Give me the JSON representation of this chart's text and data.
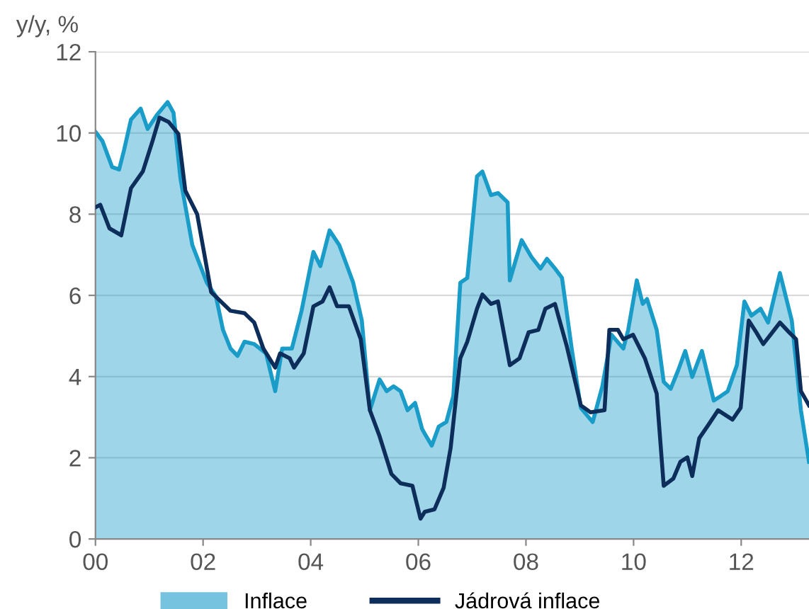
{
  "chart_data": {
    "type": "line",
    "ylabel": "y/y, %",
    "xlim": [
      2000,
      2013.26
    ],
    "ylim": [
      0,
      12
    ],
    "xticks": [
      {
        "value": 2000,
        "label": "00"
      },
      {
        "value": 2002,
        "label": "02"
      },
      {
        "value": 2004,
        "label": "04"
      },
      {
        "value": 2006,
        "label": "06"
      },
      {
        "value": 2008,
        "label": "08"
      },
      {
        "value": 2010,
        "label": "10"
      },
      {
        "value": 2012,
        "label": "12"
      }
    ],
    "yticks": [
      0,
      2,
      4,
      6,
      8,
      10,
      12
    ],
    "grid": "y",
    "legend": "bottom",
    "series": [
      {
        "name": "Inflace",
        "type": "area",
        "color": "#1a9cc9",
        "x": [
          2000.0,
          2000.13,
          2000.31,
          2000.44,
          2000.53,
          2000.66,
          2000.84,
          2000.97,
          2001.14,
          2001.34,
          2001.45,
          2001.58,
          2001.8,
          2002.07,
          2002.24,
          2002.37,
          2002.51,
          2002.64,
          2002.77,
          2002.95,
          2003.17,
          2003.34,
          2003.47,
          2003.65,
          2003.83,
          2004.05,
          2004.18,
          2004.35,
          2004.53,
          2004.66,
          2004.79,
          2004.95,
          2005.1,
          2005.28,
          2005.41,
          2005.54,
          2005.67,
          2005.8,
          2005.94,
          2006.07,
          2006.12,
          2006.25,
          2006.38,
          2006.52,
          2006.65,
          2006.78,
          2006.91,
          2007.09,
          2007.19,
          2007.35,
          2007.48,
          2007.66,
          2007.7,
          2007.92,
          2008.1,
          2008.27,
          2008.39,
          2008.54,
          2008.67,
          2008.85,
          2009.02,
          2009.24,
          2009.42,
          2009.59,
          2009.81,
          2009.9,
          2010.06,
          2010.17,
          2010.25,
          2010.43,
          2010.56,
          2010.69,
          2010.83,
          2010.96,
          2011.09,
          2011.27,
          2011.49,
          2011.62,
          2011.75,
          2011.92,
          2012.06,
          2012.19,
          2012.36,
          2012.5,
          2012.72,
          2012.94,
          2013.11,
          2013.26
        ],
        "values": [
          10.03,
          9.8,
          9.16,
          9.1,
          9.57,
          10.33,
          10.6,
          10.1,
          10.44,
          10.76,
          10.5,
          8.87,
          7.24,
          6.31,
          5.97,
          5.15,
          4.69,
          4.51,
          4.86,
          4.8,
          4.57,
          3.64,
          4.69,
          4.69,
          5.62,
          7.07,
          6.72,
          7.6,
          7.24,
          6.78,
          6.31,
          5.38,
          3.17,
          3.93,
          3.64,
          3.76,
          3.64,
          3.17,
          3.35,
          2.71,
          2.59,
          2.3,
          2.77,
          2.88,
          3.52,
          6.31,
          6.43,
          8.93,
          9.05,
          8.47,
          8.52,
          8.29,
          6.37,
          7.36,
          6.95,
          6.66,
          6.9,
          6.66,
          6.43,
          4.69,
          3.23,
          2.88,
          3.76,
          5.03,
          4.69,
          5.15,
          6.37,
          5.79,
          5.91,
          5.15,
          3.87,
          3.7,
          4.16,
          4.63,
          3.99,
          4.63,
          3.41,
          3.52,
          3.64,
          4.28,
          5.85,
          5.5,
          5.67,
          5.33,
          6.55,
          5.38,
          3.17,
          1.9
        ]
      },
      {
        "name": "Jádrová inflace",
        "color": "#0d2d5a",
        "x": [
          2000.0,
          2000.09,
          2000.26,
          2000.48,
          2000.66,
          2000.88,
          2001.06,
          2001.19,
          2001.36,
          2001.54,
          2001.67,
          2001.89,
          2002.15,
          2002.33,
          2002.51,
          2002.77,
          2002.95,
          2003.12,
          2003.34,
          2003.43,
          2003.61,
          2003.69,
          2003.87,
          2004.05,
          2004.22,
          2004.35,
          2004.49,
          2004.71,
          2004.93,
          2005.1,
          2005.28,
          2005.5,
          2005.67,
          2005.89,
          2006.04,
          2006.12,
          2006.3,
          2006.47,
          2006.6,
          2006.78,
          2006.91,
          2007.09,
          2007.19,
          2007.35,
          2007.48,
          2007.7,
          2007.88,
          2008.05,
          2008.23,
          2008.36,
          2008.54,
          2008.76,
          2009.02,
          2009.2,
          2009.46,
          2009.55,
          2009.71,
          2009.81,
          2009.99,
          2010.21,
          2010.43,
          2010.56,
          2010.74,
          2010.87,
          2011.0,
          2011.09,
          2011.22,
          2011.4,
          2011.57,
          2011.84,
          2011.99,
          2012.14,
          2012.28,
          2012.41,
          2012.58,
          2012.72,
          2012.89,
          2013.02,
          2013.11,
          2013.26
        ],
        "values": [
          8.17,
          8.23,
          7.65,
          7.48,
          8.64,
          9.05,
          9.8,
          10.38,
          10.27,
          9.98,
          8.58,
          8.0,
          6.08,
          5.85,
          5.62,
          5.56,
          5.33,
          4.69,
          4.22,
          4.57,
          4.45,
          4.22,
          4.57,
          5.73,
          5.85,
          6.2,
          5.73,
          5.73,
          4.92,
          3.17,
          2.53,
          1.6,
          1.37,
          1.31,
          0.5,
          0.67,
          0.73,
          1.26,
          2.24,
          4.45,
          4.86,
          5.67,
          6.02,
          5.79,
          5.85,
          4.28,
          4.45,
          5.09,
          5.15,
          5.67,
          5.79,
          4.74,
          3.29,
          3.12,
          3.17,
          5.15,
          5.15,
          4.92,
          5.03,
          4.45,
          3.58,
          1.31,
          1.49,
          1.9,
          2.01,
          1.55,
          2.48,
          2.83,
          3.17,
          2.94,
          3.23,
          5.38,
          5.09,
          4.8,
          5.09,
          5.33,
          5.09,
          4.92,
          3.64,
          3.29
        ]
      }
    ]
  }
}
